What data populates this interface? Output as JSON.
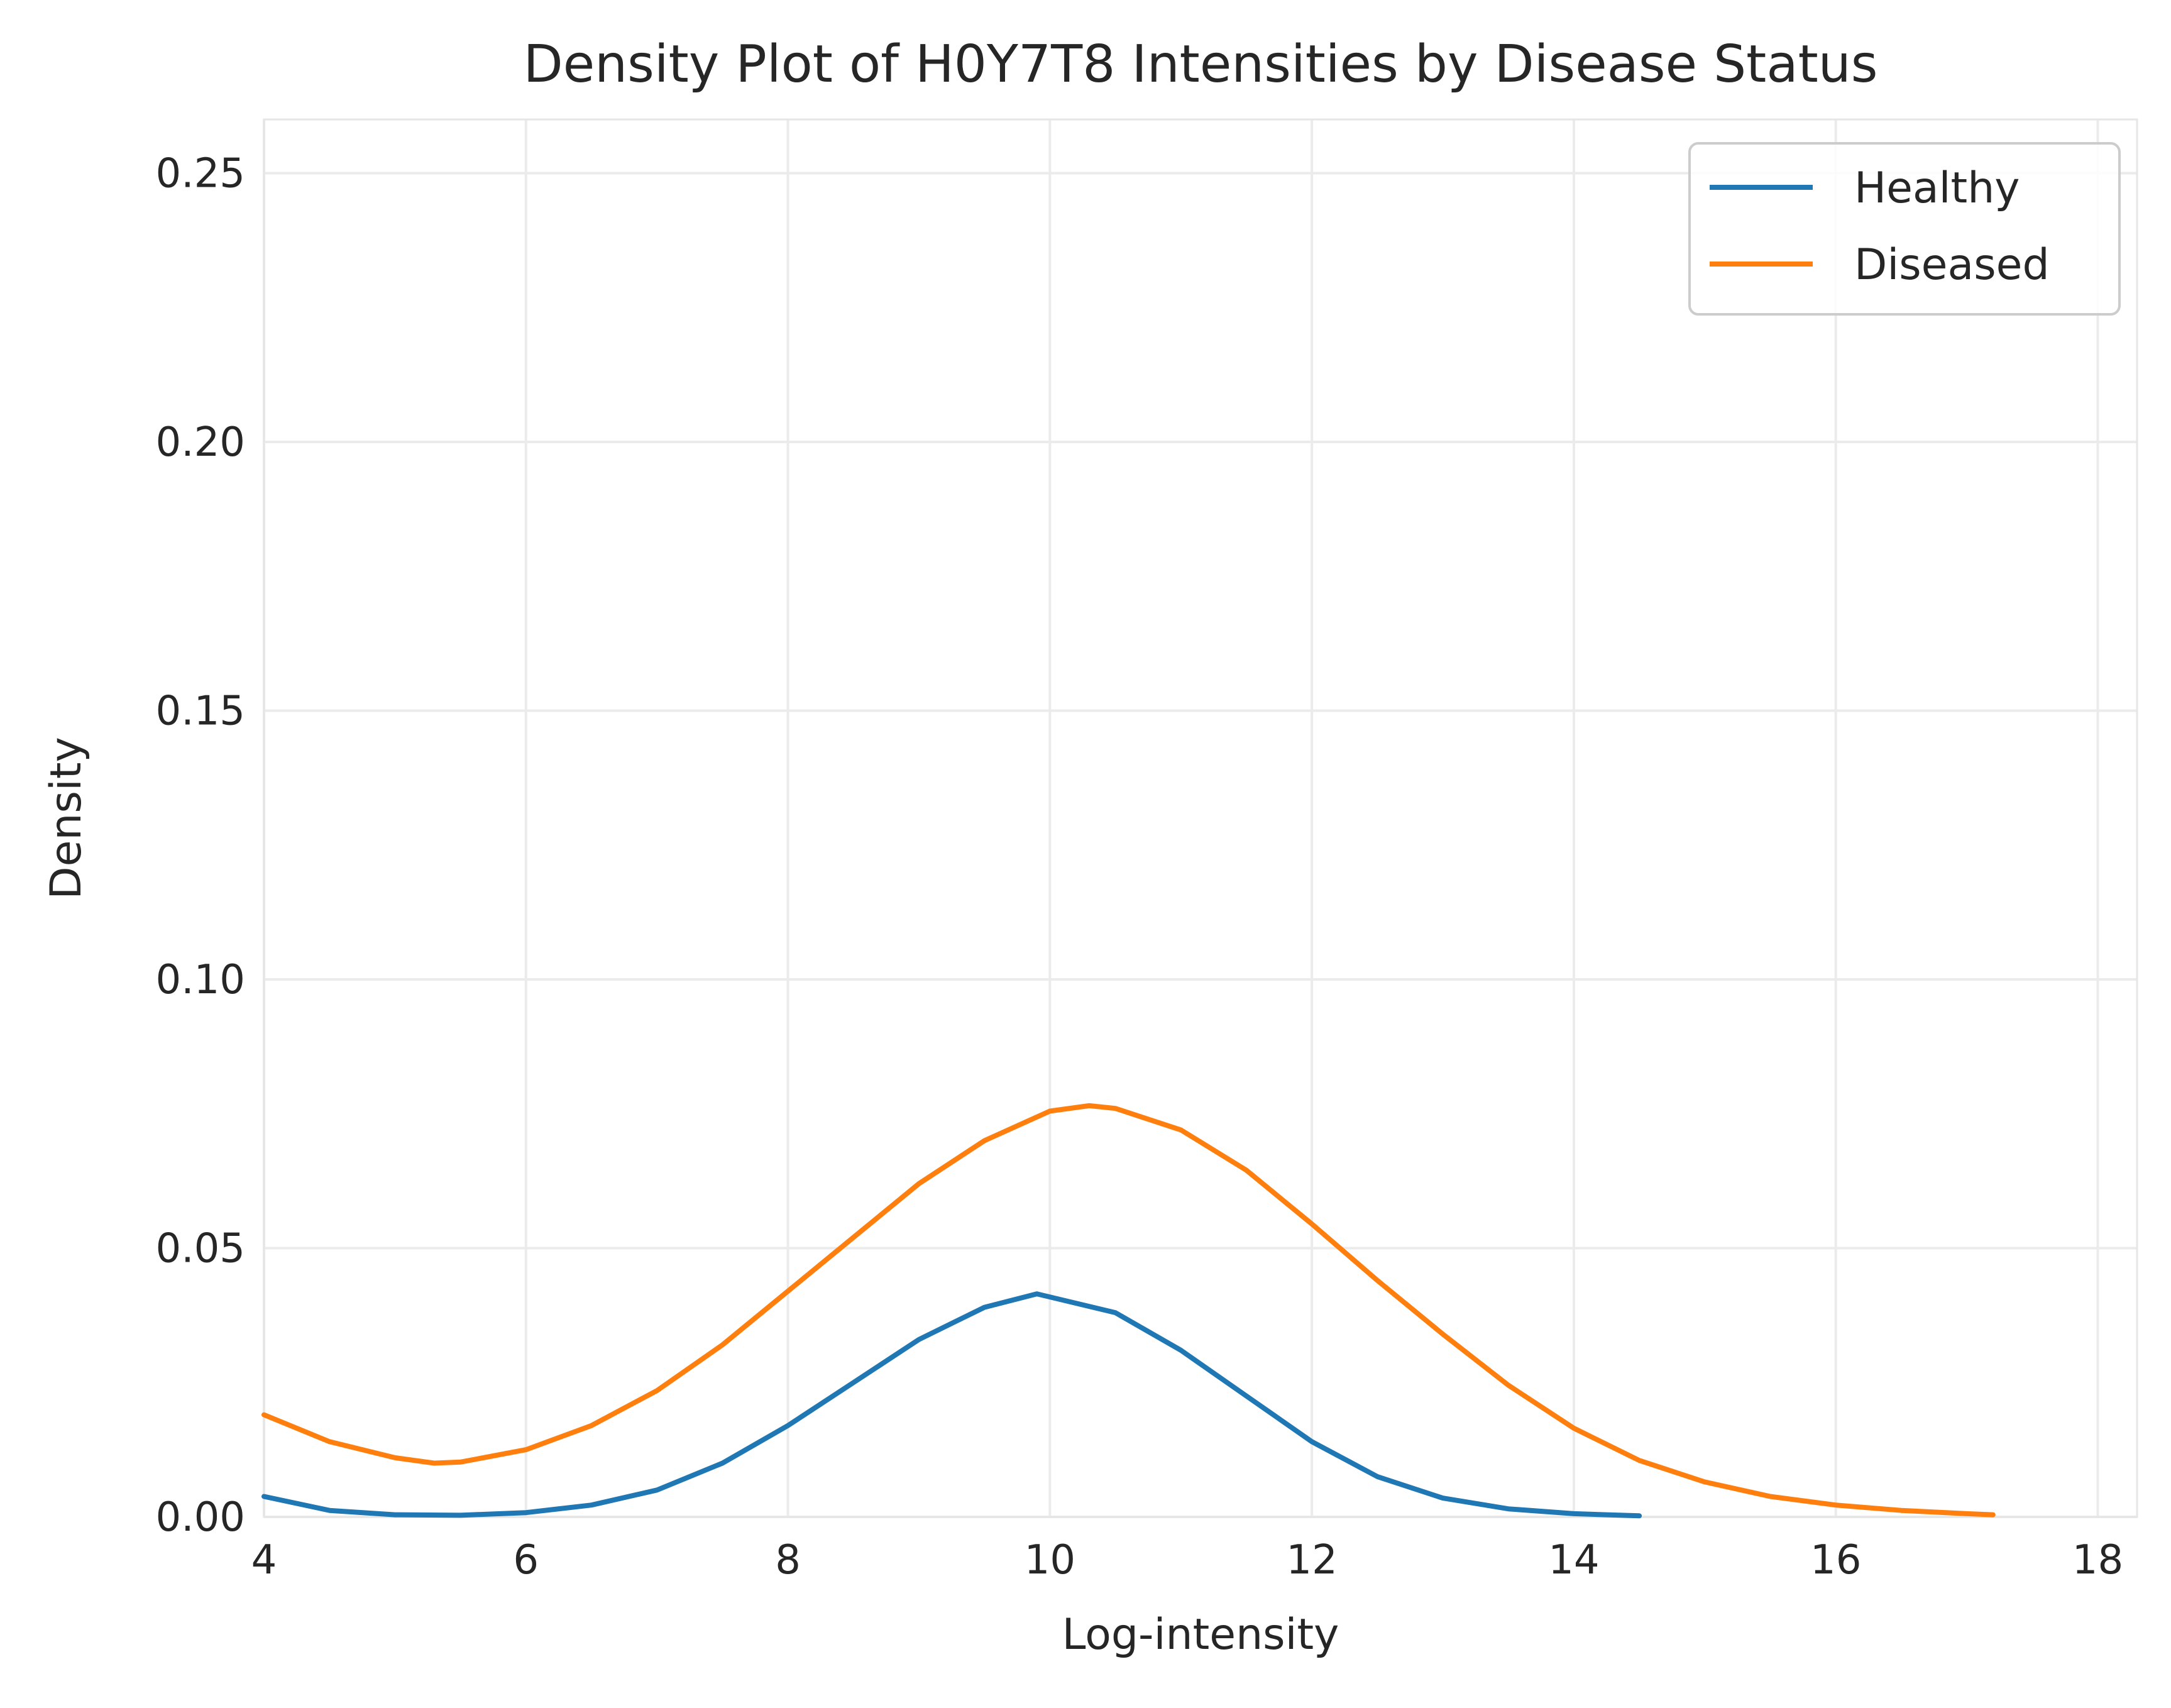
{
  "chart_data": {
    "type": "line",
    "title": "Density Plot of H0Y7T8 Intensities by Disease Status",
    "xlabel": "Log-intensity",
    "ylabel": "Density",
    "xlim": [
      4,
      18.3
    ],
    "ylim": [
      0,
      0.26
    ],
    "xticks": [
      4,
      6,
      8,
      10,
      12,
      14,
      16,
      18
    ],
    "yticks": [
      0.0,
      0.05,
      0.1,
      0.15,
      0.2,
      0.25
    ],
    "xtick_labels": [
      "4",
      "6",
      "8",
      "10",
      "12",
      "14",
      "16",
      "18"
    ],
    "ytick_labels": [
      "0.00",
      "0.05",
      "0.10",
      "0.15",
      "0.20",
      "0.25"
    ],
    "grid": true,
    "legend_position": "top-right",
    "series": [
      {
        "name": "Healthy",
        "color": "#1f77b4",
        "x": [
          4.0,
          4.5,
          5.0,
          5.5,
          6.0,
          6.5,
          7.0,
          7.5,
          8.0,
          8.5,
          9.0,
          9.5,
          9.9,
          10.5,
          11.0,
          11.5,
          12.0,
          12.5,
          13.0,
          13.5,
          14.0,
          14.5
        ],
        "y": [
          0.0038,
          0.0012,
          0.0004,
          0.0003,
          0.0008,
          0.0022,
          0.005,
          0.01,
          0.017,
          0.025,
          0.033,
          0.039,
          0.0415,
          0.038,
          0.031,
          0.0225,
          0.014,
          0.0075,
          0.0035,
          0.0015,
          0.0006,
          0.0002
        ]
      },
      {
        "name": "Diseased",
        "color": "#ff7f0e",
        "x": [
          4.0,
          4.5,
          5.0,
          5.3,
          5.5,
          6.0,
          6.5,
          7.0,
          7.5,
          8.0,
          8.5,
          9.0,
          9.5,
          10.0,
          10.3,
          10.5,
          11.0,
          11.5,
          12.0,
          12.5,
          13.0,
          13.5,
          14.0,
          14.5,
          15.0,
          15.5,
          16.0,
          16.5,
          17.0,
          17.2
        ],
        "y": [
          0.019,
          0.014,
          0.011,
          0.01,
          0.0102,
          0.0125,
          0.017,
          0.0235,
          0.032,
          0.042,
          0.052,
          0.062,
          0.07,
          0.0755,
          0.0765,
          0.076,
          0.072,
          0.0645,
          0.0545,
          0.044,
          0.034,
          0.0245,
          0.0165,
          0.0105,
          0.0065,
          0.0038,
          0.0022,
          0.0012,
          0.0006,
          0.0004
        ]
      }
    ]
  }
}
